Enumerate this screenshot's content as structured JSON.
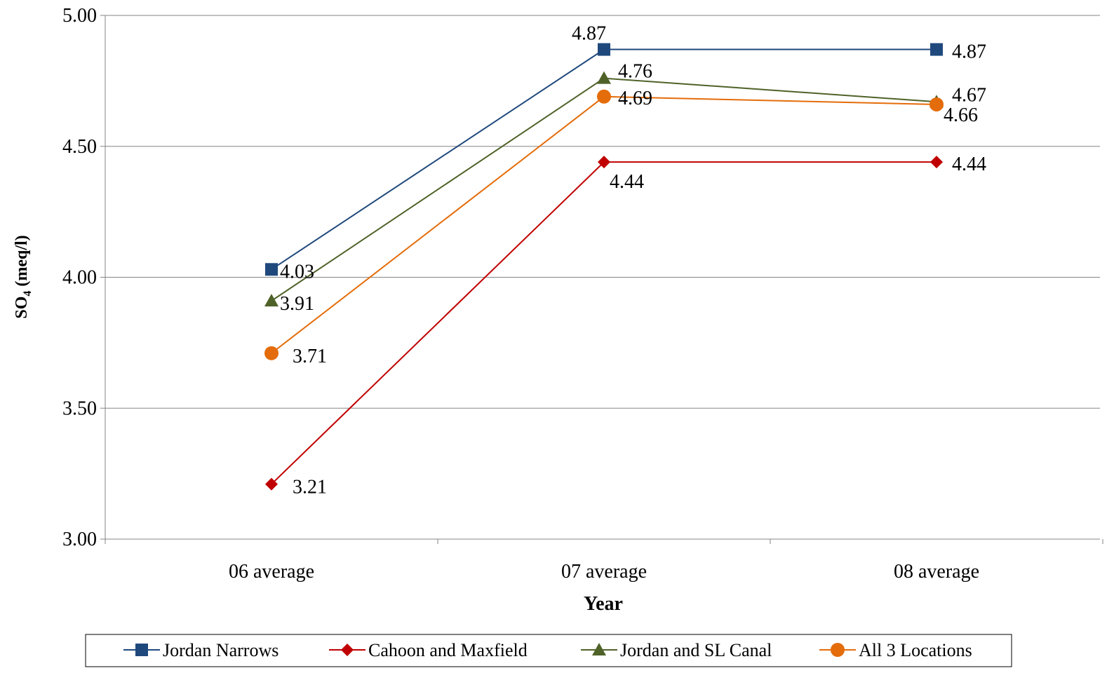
{
  "chart_data": {
    "type": "line",
    "title": "",
    "xlabel": "Year",
    "ylabel": "SO",
    "ylabel_subscript": "4",
    "ylabel_suffix": " (meq/l)",
    "categories": [
      "06 average",
      "07 average",
      "08 average"
    ],
    "ylim": [
      3.0,
      5.0
    ],
    "yticks": [
      "3.00",
      "3.50",
      "4.00",
      "4.50",
      "5.00"
    ],
    "grid": true,
    "legend_position": "bottom",
    "series": [
      {
        "name": "Jordan Narrows",
        "values": [
          4.03,
          4.87,
          4.87
        ],
        "labels": [
          "4.03",
          "4.87",
          "4.87"
        ],
        "color": "#1F497D",
        "marker": "square"
      },
      {
        "name": "Cahoon and Maxfield",
        "values": [
          3.21,
          4.44,
          4.44
        ],
        "labels": [
          "3.21",
          "4.44",
          "4.44"
        ],
        "color": "#C00000",
        "marker": "diamond"
      },
      {
        "name": "Jordan and SL Canal",
        "values": [
          3.91,
          4.76,
          4.67
        ],
        "labels": [
          "3.91",
          "4.76",
          "4.67"
        ],
        "color": "#4F6228",
        "marker": "triangle"
      },
      {
        "name": "All 3 Locations",
        "values": [
          3.71,
          4.69,
          4.66
        ],
        "labels": [
          "3.71",
          "4.69",
          "4.66"
        ],
        "color": "#E46C0A",
        "marker": "circle"
      }
    ]
  }
}
